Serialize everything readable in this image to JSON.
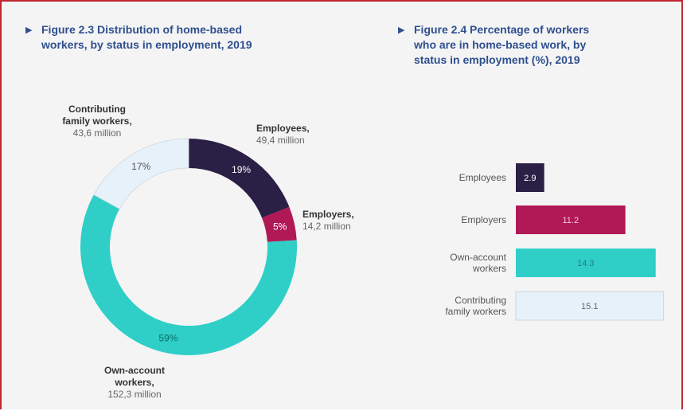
{
  "figure_left": {
    "marker": "▶",
    "title_line1": "Figure 2.3  Distribution of home-based",
    "title_line2": "workers, by status in employment, 2019"
  },
  "figure_right": {
    "marker": "▶",
    "title_line1": "Figure 2.4  Percentage of workers",
    "title_line2": "who are in home-based work, by",
    "title_line3": "status in employment (%), 2019"
  },
  "chart_data": [
    {
      "type": "pie",
      "title": "Figure 2.3  Distribution of home-based workers, by status in employment, 2019",
      "donut": true,
      "slices": [
        {
          "label_line1": "Employees,",
          "label_line2": "",
          "amount": "49,4 million",
          "percent": 19,
          "pct_label": "19%",
          "color": "#2a1f45"
        },
        {
          "label_line1": "Employers,",
          "label_line2": "",
          "amount": "14,2 million",
          "percent": 5,
          "pct_label": "5%",
          "color": "#b01955"
        },
        {
          "label_line1": "Own-account",
          "label_line2": "workers,",
          "amount": "152,3 million",
          "percent": 59,
          "pct_label": "59%",
          "color": "#2fcfc7"
        },
        {
          "label_line1": "Contributing",
          "label_line2": "family workers,",
          "amount": "43,6 million",
          "percent": 17,
          "pct_label": "17%",
          "color": "#e6f1fa"
        }
      ]
    },
    {
      "type": "bar",
      "orientation": "horizontal",
      "title": "Figure 2.4  Percentage of workers who are in home-based work, by status in employment (%), 2019",
      "categories": [
        {
          "line1": "Employees",
          "line2": ""
        },
        {
          "line1": "Employers",
          "line2": ""
        },
        {
          "line1": "Own-account",
          "line2": "workers"
        },
        {
          "line1": "Contributing",
          "line2": "family workers"
        }
      ],
      "values": [
        2.9,
        11.2,
        14.3,
        15.1
      ],
      "value_labels": [
        "2.9",
        "11.2",
        "14.3",
        "15.1"
      ],
      "colors": [
        "#2a1f45",
        "#b01955",
        "#2fcfc7",
        "#e6f1fa"
      ],
      "label_colors": [
        "#ffffff",
        "#f3c9d8",
        "#1f7f7a",
        "#666666"
      ],
      "xlim": [
        0,
        15.3
      ]
    }
  ]
}
